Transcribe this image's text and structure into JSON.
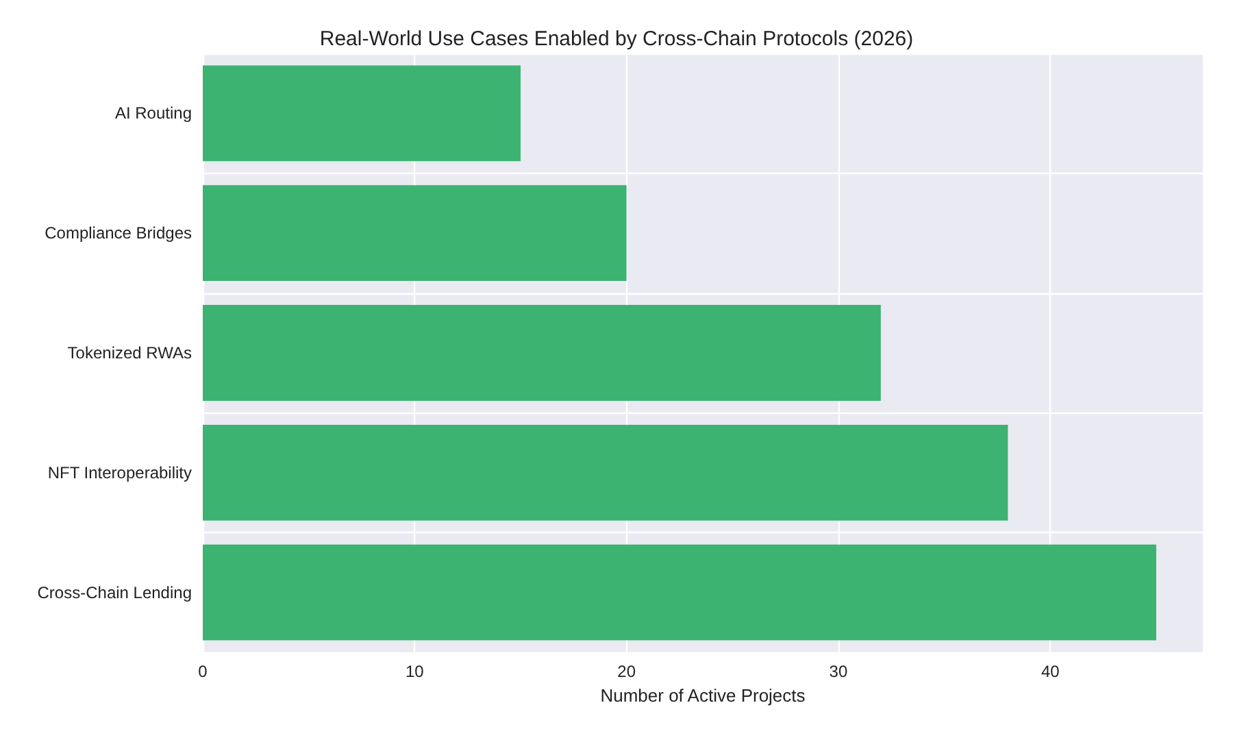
{
  "chart_data": {
    "type": "bar",
    "orientation": "horizontal",
    "title": "Real-World Use Cases Enabled by Cross-Chain Protocols (2026)",
    "xlabel": "Number of Active Projects",
    "categories": [
      "AI Routing",
      "Compliance Bridges",
      "Tokenized RWAs",
      "NFT Interoperability",
      "Cross-Chain Lending"
    ],
    "values": [
      15,
      20,
      32,
      38,
      45
    ],
    "color": "#3cb371",
    "xlim": [
      0,
      47.2
    ],
    "xticks": [
      0,
      10,
      20,
      30,
      40
    ],
    "grid": true
  }
}
